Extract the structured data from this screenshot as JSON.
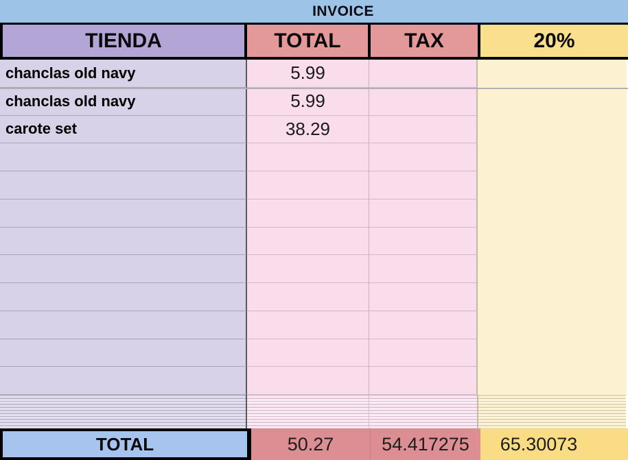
{
  "title": "INVOICE",
  "columns": {
    "tienda": "TIENDA",
    "total": "TOTAL",
    "tax": "TAX",
    "pct": "20%"
  },
  "rows": [
    {
      "name": "chanclas old navy",
      "total": "5.99",
      "tax": "",
      "pct": ""
    },
    {
      "name": "chanclas old navy",
      "total": "5.99",
      "tax": "",
      "pct": ""
    },
    {
      "name": "carote set",
      "total": "38.29",
      "tax": "",
      "pct": ""
    }
  ],
  "empty_row_count": 9,
  "summary": {
    "label": "TOTAL",
    "total": "50.27",
    "tax": "54.417275",
    "pct": "65.30073"
  },
  "colors": {
    "title_bar_blue": "#9DC3E6",
    "header_purple": "#B3A6D7",
    "header_salmon": "#E39899",
    "header_yellow": "#FADF8E",
    "cell_purple": "#D8D2E8",
    "cell_pink": "#F9DDEB",
    "cell_yellow": "#FCF2D2",
    "summary_blue": "#A7C4EF",
    "summary_salmon": "#DD8E92",
    "summary_yellow": "#FADC85",
    "border_black": "#000000"
  }
}
